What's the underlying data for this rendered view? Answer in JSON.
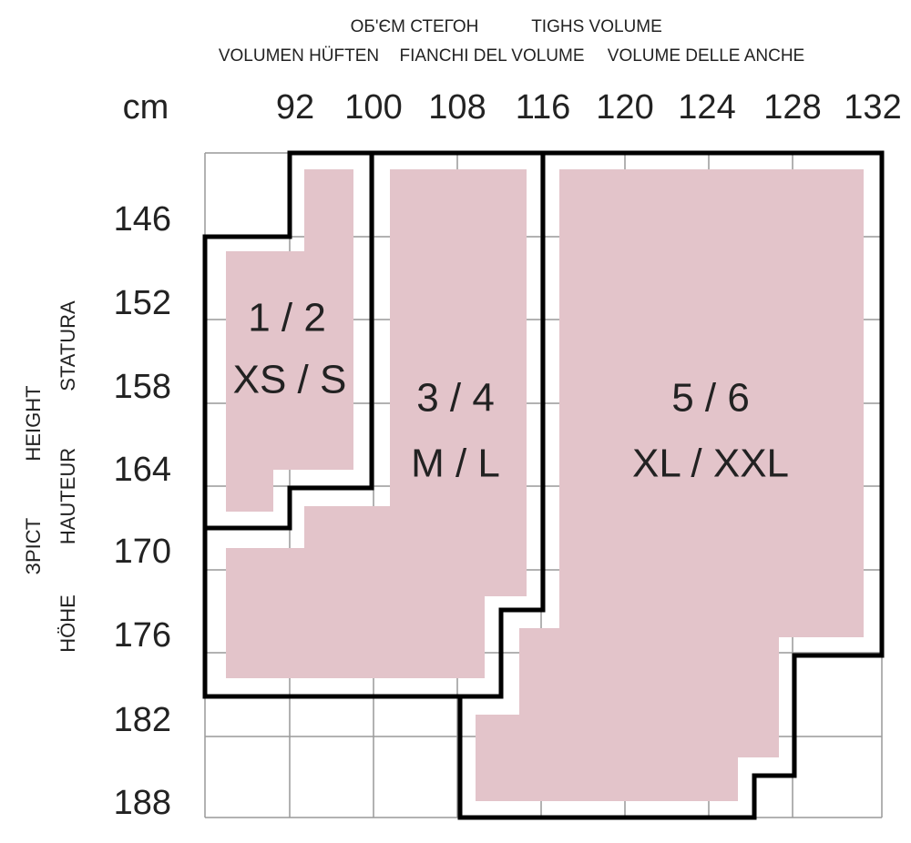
{
  "header": {
    "top_labels": [
      "ОБ'ЄМ СТЕГОН",
      "TIGHS VOLUME"
    ],
    "bottom_labels": [
      "VOLUMEN HÜFTEN",
      "FIANCHI DEL VOLUME",
      "VOLUME DELLE ANCHE"
    ],
    "unit": "cm"
  },
  "columns": [
    "92",
    "100",
    "108",
    "116",
    "120",
    "124",
    "128",
    "132"
  ],
  "rows": [
    "146",
    "152",
    "158",
    "164",
    "170",
    "176",
    "182",
    "188"
  ],
  "side_labels": [
    "STATURA",
    "HEIGHT",
    "HAUTEUR",
    "ЗРІСТ",
    "HÖHE"
  ],
  "zones": [
    {
      "number": "1 / 2",
      "size": "XS / S"
    },
    {
      "number": "3 / 4",
      "size": "M / L"
    },
    {
      "number": "5 / 6",
      "size": "XL / XXL"
    }
  ]
}
